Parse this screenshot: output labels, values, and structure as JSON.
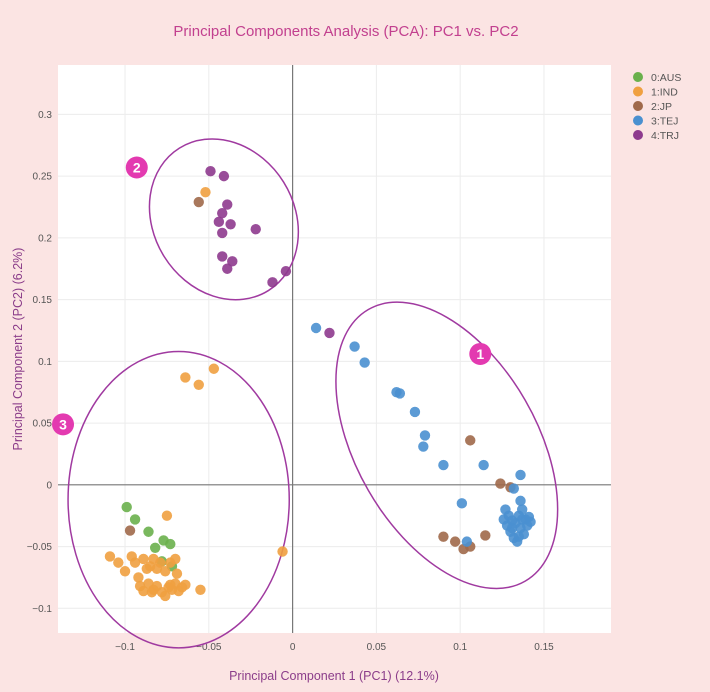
{
  "chart_data": {
    "type": "scatter",
    "title": "Principal Components Analysis (PCA): PC1 vs. PC2",
    "xlabel": "Principal Component 1 (PC1) (12.1%)",
    "ylabel": "Principal Component 2 (PC2) (6.2%)",
    "xlim": [
      -0.14,
      0.19
    ],
    "ylim": [
      -0.12,
      0.34
    ],
    "grid": true,
    "legend_position": "top-right",
    "xticks": [
      {
        "value": -0.1,
        "label": "−0.1"
      },
      {
        "value": -0.05,
        "label": "−0.05"
      },
      {
        "value": 0,
        "label": "0"
      },
      {
        "value": 0.05,
        "label": "0.05"
      },
      {
        "value": 0.1,
        "label": "0.1"
      },
      {
        "value": 0.15,
        "label": "0.15"
      }
    ],
    "yticks": [
      {
        "value": -0.1,
        "label": "−0.1"
      },
      {
        "value": -0.05,
        "label": "−0.05"
      },
      {
        "value": 0,
        "label": "0"
      },
      {
        "value": 0.05,
        "label": "0.05"
      },
      {
        "value": 0.1,
        "label": "0.1"
      },
      {
        "value": 0.15,
        "label": "0.15"
      },
      {
        "value": 0.2,
        "label": "0.2"
      },
      {
        "value": 0.25,
        "label": "0.25"
      },
      {
        "value": 0.3,
        "label": "0.3"
      }
    ],
    "series": [
      {
        "name": "0:AUS",
        "color": "#6ab04c",
        "points": [
          [
            -0.099,
            -0.018
          ],
          [
            -0.094,
            -0.028
          ],
          [
            -0.086,
            -0.038
          ],
          [
            -0.082,
            -0.051
          ],
          [
            -0.077,
            -0.045
          ],
          [
            -0.073,
            -0.048
          ],
          [
            -0.072,
            -0.066
          ],
          [
            -0.078,
            -0.062
          ]
        ]
      },
      {
        "name": "1:IND",
        "color": "#f0a040",
        "points": [
          [
            -0.064,
            0.087
          ],
          [
            -0.047,
            0.094
          ],
          [
            -0.056,
            0.081
          ],
          [
            -0.052,
            0.237
          ],
          [
            -0.006,
            -0.054
          ],
          [
            -0.075,
            -0.025
          ],
          [
            -0.109,
            -0.058
          ],
          [
            -0.104,
            -0.063
          ],
          [
            -0.1,
            -0.07
          ],
          [
            -0.096,
            -0.058
          ],
          [
            -0.094,
            -0.063
          ],
          [
            -0.092,
            -0.075
          ],
          [
            -0.089,
            -0.06
          ],
          [
            -0.087,
            -0.068
          ],
          [
            -0.085,
            -0.066
          ],
          [
            -0.083,
            -0.06
          ],
          [
            -0.081,
            -0.068
          ],
          [
            -0.079,
            -0.063
          ],
          [
            -0.076,
            -0.07
          ],
          [
            -0.073,
            -0.063
          ],
          [
            -0.07,
            -0.06
          ],
          [
            -0.069,
            -0.072
          ],
          [
            -0.091,
            -0.082
          ],
          [
            -0.089,
            -0.086
          ],
          [
            -0.086,
            -0.08
          ],
          [
            -0.083,
            -0.085
          ],
          [
            -0.081,
            -0.082
          ],
          [
            -0.078,
            -0.087
          ],
          [
            -0.076,
            -0.09
          ],
          [
            -0.074,
            -0.083
          ],
          [
            -0.072,
            -0.085
          ],
          [
            -0.07,
            -0.08
          ],
          [
            -0.068,
            -0.086
          ],
          [
            -0.066,
            -0.083
          ],
          [
            -0.064,
            -0.081
          ],
          [
            -0.055,
            -0.085
          ],
          [
            -0.084,
            -0.087
          ],
          [
            -0.073,
            -0.081
          ]
        ]
      },
      {
        "name": "2:JP",
        "color": "#a0694a",
        "points": [
          [
            -0.056,
            0.229
          ],
          [
            -0.097,
            -0.037
          ],
          [
            0.106,
            0.036
          ],
          [
            0.124,
            0.001
          ],
          [
            0.09,
            -0.042
          ],
          [
            0.097,
            -0.046
          ],
          [
            0.102,
            -0.052
          ],
          [
            0.106,
            -0.05
          ],
          [
            0.115,
            -0.041
          ],
          [
            0.13,
            -0.002
          ]
        ]
      },
      {
        "name": "3:TEJ",
        "color": "#4a90d0",
        "points": [
          [
            0.014,
            0.127
          ],
          [
            0.037,
            0.112
          ],
          [
            0.043,
            0.099
          ],
          [
            0.062,
            0.075
          ],
          [
            0.064,
            0.074
          ],
          [
            0.073,
            0.059
          ],
          [
            0.079,
            0.04
          ],
          [
            0.078,
            0.031
          ],
          [
            0.09,
            0.016
          ],
          [
            0.114,
            0.016
          ],
          [
            0.136,
            0.008
          ],
          [
            0.136,
            -0.013
          ],
          [
            0.101,
            -0.015
          ],
          [
            0.104,
            -0.046
          ],
          [
            0.132,
            -0.003
          ],
          [
            0.127,
            -0.02
          ],
          [
            0.129,
            -0.025
          ],
          [
            0.131,
            -0.029
          ],
          [
            0.133,
            -0.031
          ],
          [
            0.135,
            -0.025
          ],
          [
            0.137,
            -0.02
          ],
          [
            0.139,
            -0.028
          ],
          [
            0.141,
            -0.026
          ],
          [
            0.126,
            -0.028
          ],
          [
            0.128,
            -0.033
          ],
          [
            0.13,
            -0.038
          ],
          [
            0.132,
            -0.043
          ],
          [
            0.134,
            -0.046
          ],
          [
            0.136,
            -0.035
          ],
          [
            0.138,
            -0.04
          ],
          [
            0.14,
            -0.033
          ],
          [
            0.142,
            -0.03
          ],
          [
            0.131,
            -0.035
          ],
          [
            0.135,
            -0.042
          ],
          [
            0.137,
            -0.028
          ]
        ]
      },
      {
        "name": "4:TRJ",
        "color": "#8e3a8e",
        "points": [
          [
            -0.049,
            0.254
          ],
          [
            -0.041,
            0.25
          ],
          [
            -0.039,
            0.227
          ],
          [
            -0.042,
            0.22
          ],
          [
            -0.044,
            0.213
          ],
          [
            -0.037,
            0.211
          ],
          [
            -0.022,
            0.207
          ],
          [
            -0.042,
            0.204
          ],
          [
            -0.042,
            0.185
          ],
          [
            -0.036,
            0.181
          ],
          [
            -0.039,
            0.175
          ],
          [
            -0.004,
            0.173
          ],
          [
            -0.012,
            0.164
          ],
          [
            0.022,
            0.123
          ]
        ]
      }
    ],
    "annotations": [
      {
        "label": "1",
        "x": 0.112,
        "y": 0.106
      },
      {
        "label": "2",
        "x": -0.093,
        "y": 0.257
      },
      {
        "label": "3",
        "x": -0.137,
        "y": 0.049
      }
    ],
    "ellipses": [
      {
        "cluster": "1",
        "center_x": 0.092,
        "center_y": 0.032,
        "radius_x": 0.054,
        "radius_y": 0.127,
        "rotation_deg": -30
      },
      {
        "cluster": "2",
        "center_x": -0.041,
        "center_y": 0.215,
        "radius_x": 0.042,
        "radius_y": 0.068,
        "rotation_deg": -32
      },
      {
        "cluster": "3",
        "center_x": -0.068,
        "center_y": -0.012,
        "radius_x": 0.066,
        "radius_y": 0.12,
        "rotation_deg": 0
      }
    ]
  },
  "colors": {
    "page_background": "#fbe4e3",
    "plot_background": "#ffffff",
    "title": "#c2408f",
    "axis_label": "#8b3d8a",
    "ellipse_stroke": "#a03aa0",
    "badge_fill": "#e33ab0"
  }
}
